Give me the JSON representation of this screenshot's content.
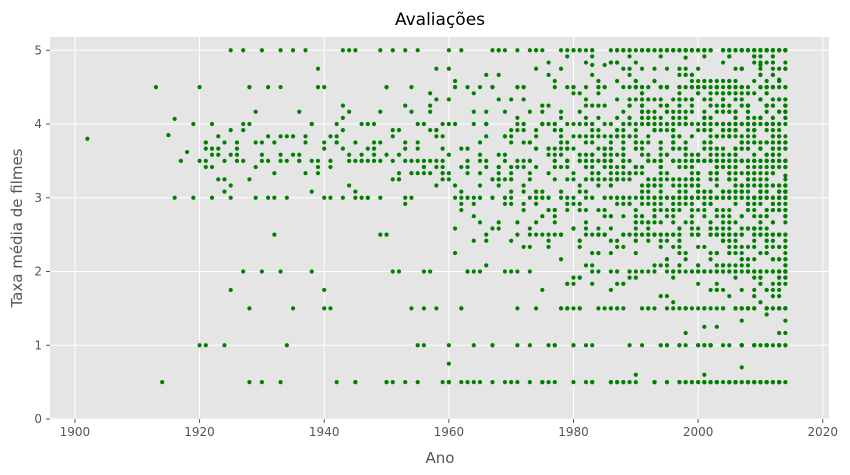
{
  "chart_data": {
    "type": "scatter",
    "title": "Avaliações",
    "xlabel": "Ano",
    "ylabel": "Taxa média de filmes",
    "xlim": [
      1896,
      2021
    ],
    "ylim": [
      0,
      5.18
    ],
    "xticks": [
      1900,
      1920,
      1940,
      1960,
      1980,
      2000,
      2020
    ],
    "yticks": [
      0,
      1,
      2,
      3,
      4,
      5
    ],
    "grid": true,
    "colors": {
      "point": "#008000",
      "background": "#e5e5e5",
      "grid": "#ffffff"
    },
    "series": [
      {
        "x_range": [
          1902,
          2014
        ],
        "y_range": [
          0.5,
          5
        ],
        "points": [
          [
            1902,
            3.8
          ],
          [
            1913,
            4.5
          ],
          [
            1914,
            0.5
          ],
          [
            1915,
            3.85
          ],
          [
            1916,
            3.0
          ],
          [
            1916,
            4.07
          ],
          [
            1917,
            3.5
          ],
          [
            1918,
            3.62
          ],
          [
            1919,
            3.0
          ],
          [
            1919,
            4.0
          ],
          [
            1920,
            4.5
          ],
          [
            1920,
            1.0
          ],
          [
            1921,
            1.0
          ],
          [
            1920,
            3.5
          ],
          [
            1921,
            3.5
          ],
          [
            1922,
            3.0
          ],
          [
            1924,
            1.0
          ],
          [
            1925,
            5.0
          ],
          [
            1925,
            1.75
          ],
          [
            1927,
            2.0
          ],
          [
            1928,
            0.5
          ],
          [
            1928,
            1.5
          ],
          [
            1930,
            0.5
          ],
          [
            1933,
            2.0
          ],
          [
            1933,
            0.5
          ],
          [
            1935,
            1.5
          ],
          [
            1938,
            2.0
          ],
          [
            1939,
            4.75
          ],
          [
            1940,
            1.75
          ],
          [
            1940,
            1.5
          ],
          [
            1941,
            1.5
          ],
          [
            1942,
            0.5
          ],
          [
            1945,
            0.5
          ],
          [
            1930,
            5.0
          ],
          [
            1933,
            5.0
          ],
          [
            1943,
            5.0
          ],
          [
            1945,
            5.0
          ],
          [
            1949,
            5.0
          ],
          [
            1951,
            5.0
          ],
          [
            1953,
            5.0
          ],
          [
            1958,
            4.75
          ],
          [
            1960,
            4.75
          ],
          [
            1954,
            1.5
          ],
          [
            1956,
            1.0
          ],
          [
            1958,
            1.5
          ],
          [
            1950,
            0.5
          ],
          [
            1953,
            0.5
          ],
          [
            1955,
            0.5
          ],
          [
            1960,
            0.75
          ],
          [
            1983,
            4.8
          ],
          [
            1985,
            4.8
          ],
          [
            1988,
            4.75
          ],
          [
            1998,
            4.9
          ],
          [
            2010,
            4.8
          ],
          [
            1990,
            0.6
          ],
          [
            2001,
            0.6
          ],
          [
            2007,
            0.7
          ],
          [
            2013,
            4.6
          ],
          [
            2014,
            3.3
          ],
          [
            2014,
            2.5
          ]
        ]
      }
    ]
  }
}
